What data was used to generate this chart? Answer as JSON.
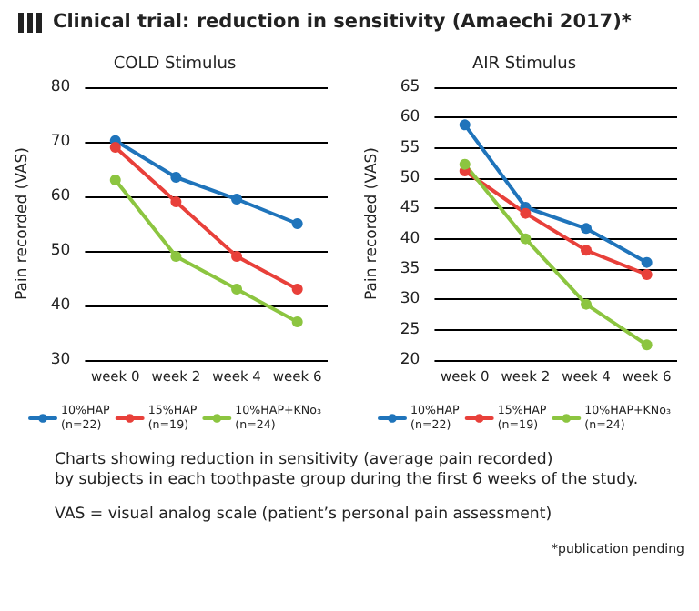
{
  "chart_data": [
    {
      "type": "line",
      "title": "COLD Stimulus",
      "ylabel": "Pain recorded (VAS)",
      "categories": [
        "week 0",
        "week 2",
        "week 4",
        "week 6"
      ],
      "series": [
        {
          "name": "10%HAP\n(n=22)",
          "color": "#1f74bb",
          "values": [
            70.2,
            63.5,
            59.5,
            55
          ]
        },
        {
          "name": "15%HAP\n(n=19)",
          "color": "#e8403a",
          "values": [
            69,
            59,
            49,
            43
          ]
        },
        {
          "name": "10%HAP+KNo₃\n(n=24)",
          "color": "#8cc540",
          "values": [
            63,
            49,
            43,
            37
          ]
        }
      ],
      "ylim": [
        30,
        80
      ],
      "yticks": [
        30,
        40,
        50,
        60,
        70,
        80
      ],
      "grid": "y",
      "legend": "bottom",
      "marker": "circle",
      "line_style": "solid",
      "annotations": [
        "Clinical trial: reduction in sensitivity (Amaechi 2017)*",
        "Charts showing reduction in sensitivity (average pain recorded)\nby subjects in each toothpaste group during the first 6 weeks of the study.",
        "VAS = visual analog scale (patient’s personal pain assessment)",
        "*publication pending"
      ]
    },
    {
      "type": "line",
      "title": "AIR Stimulus",
      "ylabel": "Pain recorded (VAS)",
      "categories": [
        "week 0",
        "week 2",
        "week 4",
        "week 6"
      ],
      "series": [
        {
          "name": "10%HAP\n(n=22)",
          "color": "#1f74bb",
          "values": [
            58.8,
            45.2,
            41.7,
            36.1
          ]
        },
        {
          "name": "15%HAP\n(n=19)",
          "color": "#e8403a",
          "values": [
            51.2,
            44.2,
            38.1,
            34.1
          ]
        },
        {
          "name": "10%HAP+KNo₃\n(n=24)",
          "color": "#8cc540",
          "values": [
            52.3,
            40,
            29.2,
            22.5
          ]
        }
      ],
      "ylim": [
        20,
        65
      ],
      "yticks": [
        20,
        25,
        30,
        35,
        40,
        45,
        50,
        55,
        60,
        65
      ],
      "grid": "y",
      "legend": "bottom",
      "marker": "circle",
      "line_style": "solid"
    }
  ]
}
